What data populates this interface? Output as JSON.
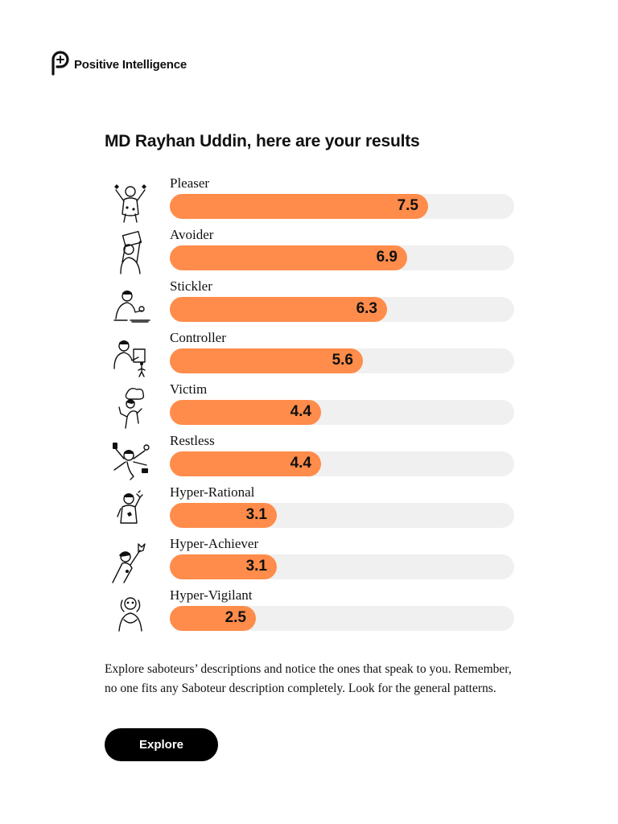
{
  "brand": {
    "name": "Positive Intelligence",
    "logo_icon": "pi-logo-icon"
  },
  "title": "MD Rayhan Uddin, here are your results",
  "scale_max": 10,
  "accent_color": "#ff8c4a",
  "track_color": "#f0f0f0",
  "results": [
    {
      "label": "Pleaser",
      "score": "7.5",
      "value": 7.5,
      "icon": "pleaser-figure-icon"
    },
    {
      "label": "Avoider",
      "score": "6.9",
      "value": 6.9,
      "icon": "avoider-figure-icon"
    },
    {
      "label": "Stickler",
      "score": "6.3",
      "value": 6.3,
      "icon": "stickler-figure-icon"
    },
    {
      "label": "Controller",
      "score": "5.6",
      "value": 5.6,
      "icon": "controller-figure-icon"
    },
    {
      "label": "Victim",
      "score": "4.4",
      "value": 4.4,
      "icon": "victim-figure-icon"
    },
    {
      "label": "Restless",
      "score": "4.4",
      "value": 4.4,
      "icon": "restless-figure-icon"
    },
    {
      "label": "Hyper-Rational",
      "score": "3.1",
      "value": 3.1,
      "icon": "hyper-rational-figure-icon"
    },
    {
      "label": "Hyper-Achiever",
      "score": "3.1",
      "value": 3.1,
      "icon": "hyper-achiever-figure-icon"
    },
    {
      "label": "Hyper-Vigilant",
      "score": "2.5",
      "value": 2.5,
      "icon": "hyper-vigilant-figure-icon"
    }
  ],
  "description": "Explore saboteurs’ descriptions and notice the ones that speak to you. Remember, no one fits any Saboteur description completely. Look for the general patterns.",
  "explore_label": "Explore"
}
